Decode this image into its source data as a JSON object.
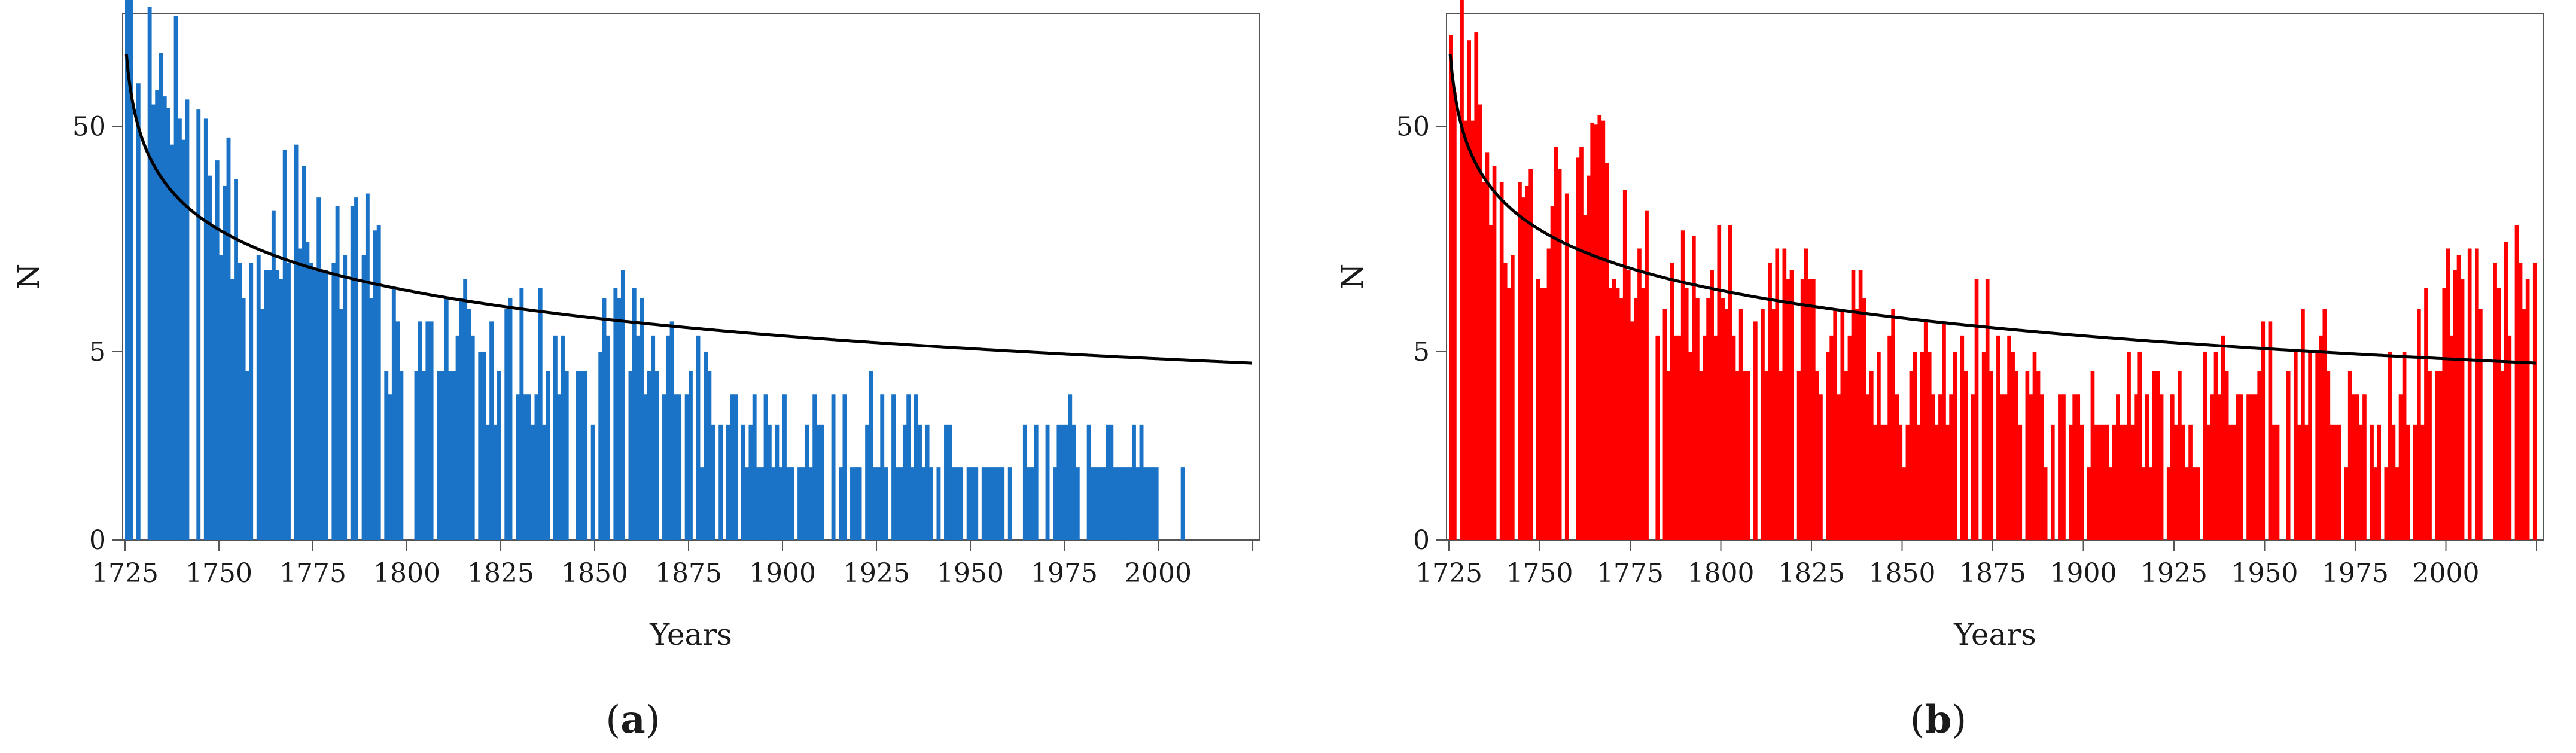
{
  "chart_data": [
    {
      "id": "a",
      "type": "bar",
      "panel_label_text": "a",
      "bar_color": "#1a73c6",
      "curve_color": "#000000",
      "xlabel": "Years",
      "ylabel": "N",
      "xlim": [
        1725,
        2025
      ],
      "ylim_log": [
        1,
        150
      ],
      "y_scale_note": "log(N+1) scale",
      "xticks": [
        1725,
        1750,
        1775,
        1800,
        1825,
        1850,
        1875,
        1900,
        1925,
        1950,
        1975,
        2000
      ],
      "xtick_labels": [
        "1725",
        "1750",
        "1775",
        "1800",
        "1825",
        "1850",
        "1875",
        "1900",
        "1925",
        "1950",
        "1975",
        "2000"
      ],
      "yticks": [
        0,
        5,
        50
      ],
      "ytick_labels": [
        "0",
        "5",
        "50"
      ],
      "curve": {
        "formula": "N(t) = 120 / (t - 1724)^0.58"
      },
      "base_keypoints": [
        [
          1725,
          150
        ],
        [
          1728,
          95
        ],
        [
          1733,
          60
        ],
        [
          1739,
          90
        ],
        [
          1745,
          28
        ],
        [
          1750,
          25
        ],
        [
          1757,
          8
        ],
        [
          1762,
          10
        ],
        [
          1770,
          25
        ],
        [
          1776,
          18
        ],
        [
          1782,
          12
        ],
        [
          1788,
          15
        ],
        [
          1795,
          5
        ],
        [
          1800,
          8
        ],
        [
          1810,
          6
        ],
        [
          1815,
          12
        ],
        [
          1820,
          3
        ],
        [
          1830,
          5
        ],
        [
          1835,
          5
        ],
        [
          1845,
          2
        ],
        [
          1855,
          6
        ],
        [
          1862,
          5
        ],
        [
          1868,
          4
        ],
        [
          1875,
          3
        ],
        [
          1885,
          2
        ],
        [
          1895,
          1.5
        ],
        [
          1905,
          1.5
        ],
        [
          1915,
          2
        ],
        [
          1930,
          1.5
        ],
        [
          1945,
          1
        ],
        [
          1960,
          1
        ],
        [
          1970,
          1.5
        ],
        [
          1985,
          1
        ],
        [
          1995,
          1
        ],
        [
          2010,
          1
        ],
        [
          2025,
          1
        ]
      ],
      "seed": 7
    },
    {
      "id": "b",
      "type": "bar",
      "panel_label_text": "b",
      "bar_color": "#ff0000",
      "curve_color": "#000000",
      "xlabel": "Years",
      "ylabel": "N",
      "xlim": [
        1725,
        2025
      ],
      "ylim_log": [
        1,
        150
      ],
      "y_scale_note": "log(N+1) scale",
      "xticks": [
        1725,
        1750,
        1775,
        1800,
        1825,
        1850,
        1875,
        1900,
        1925,
        1950,
        1975,
        2000
      ],
      "xtick_labels": [
        "1725",
        "1750",
        "1775",
        "1800",
        "1825",
        "1850",
        "1875",
        "1900",
        "1925",
        "1950",
        "1975",
        "2000"
      ],
      "yticks": [
        0,
        5,
        50
      ],
      "ytick_labels": [
        "0",
        "5",
        "50"
      ],
      "curve": {
        "formula": "N(t) = 120 / (t - 1724)^0.58"
      },
      "base_keypoints": [
        [
          1725,
          130
        ],
        [
          1728,
          110
        ],
        [
          1733,
          45
        ],
        [
          1740,
          22
        ],
        [
          1747,
          18
        ],
        [
          1755,
          20
        ],
        [
          1762,
          30
        ],
        [
          1770,
          20
        ],
        [
          1780,
          10
        ],
        [
          1790,
          9
        ],
        [
          1800,
          10
        ],
        [
          1810,
          6
        ],
        [
          1820,
          8
        ],
        [
          1830,
          5
        ],
        [
          1840,
          6
        ],
        [
          1850,
          3
        ],
        [
          1860,
          4
        ],
        [
          1870,
          7
        ],
        [
          1880,
          3
        ],
        [
          1890,
          2.5
        ],
        [
          1900,
          2
        ],
        [
          1910,
          2.5
        ],
        [
          1920,
          2
        ],
        [
          1930,
          2.5
        ],
        [
          1940,
          3
        ],
        [
          1950,
          4
        ],
        [
          1960,
          4
        ],
        [
          1970,
          3
        ],
        [
          1980,
          2
        ],
        [
          1990,
          3
        ],
        [
          2000,
          8
        ],
        [
          2010,
          9
        ],
        [
          2020,
          9
        ],
        [
          2025,
          11
        ]
      ],
      "seed": 13
    }
  ]
}
